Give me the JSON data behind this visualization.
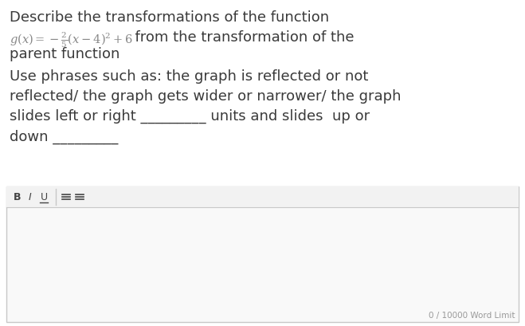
{
  "bg_color": "#ffffff",
  "title_line1": "Describe the transformations of the function",
  "formula_suffix": "  from the transformation of the",
  "line3": "parent function",
  "body_text": "Use phrases such as: the graph is reflected or not\nreflected/ the graph gets wider or narrower/ the graph\nslides left or right _________ units and slides  up or\ndown _________",
  "word_limit": "0 / 10000 Word Limit",
  "text_color": "#3a3a3a",
  "formula_color": "#888888",
  "toolbar_bg": "#f2f2f2",
  "answer_box_bg": "#f9f9f9",
  "border_color": "#c8c8c8",
  "font_size_main": 13.0,
  "font_size_formula": 10.5
}
